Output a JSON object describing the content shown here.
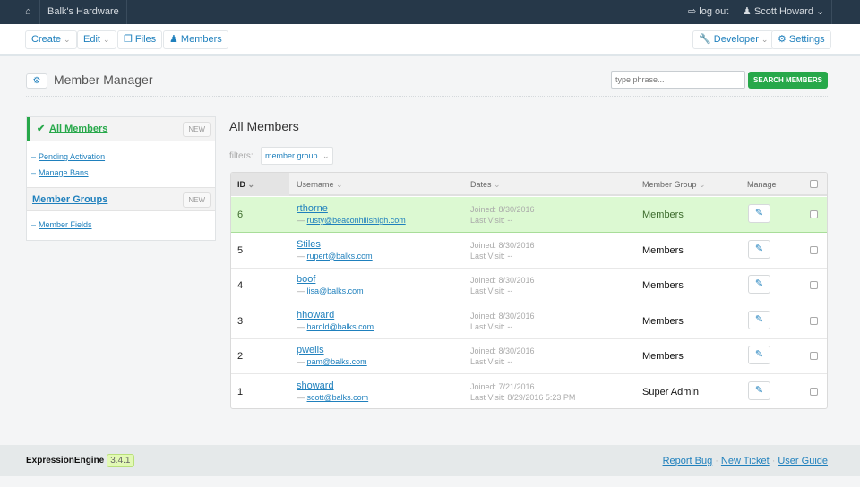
{
  "topbar": {
    "site_name": "Balk's Hardware",
    "logout": "log out",
    "user": "Scott Howard",
    "icons": {
      "home": "home-icon",
      "logout": "sign-out-icon",
      "user": "user-icon"
    }
  },
  "nav": {
    "create": "Create",
    "edit": "Edit",
    "files": "Files",
    "members": "Members",
    "developer": "Developer",
    "settings": "Settings"
  },
  "page": {
    "title": "Member Manager",
    "search_placeholder": "type phrase...",
    "search_button": "SEARCH MEMBERS"
  },
  "sidebar": {
    "all_members": "All Members",
    "new1": "NEW",
    "pending": "Pending Activation",
    "bans": "Manage Bans",
    "groups": "Member Groups",
    "new2": "NEW",
    "fields": "Member Fields"
  },
  "main": {
    "title": "All Members",
    "filters_label": "filters:",
    "filter_member_group": "member group"
  },
  "table": {
    "headers": {
      "id": "ID",
      "username": "Username",
      "dates": "Dates",
      "group": "Member Group",
      "manage": "Manage"
    },
    "rows": [
      {
        "id": "6",
        "username": "rthorne",
        "email": "rusty@beaconhillshigh.com",
        "joined": "Joined: 8/30/2016",
        "last": "Last Visit: --",
        "group": "Members",
        "selected": true
      },
      {
        "id": "5",
        "username": "Stiles",
        "email": "rupert@balks.com",
        "joined": "Joined: 8/30/2016",
        "last": "Last Visit: --",
        "group": "Members"
      },
      {
        "id": "4",
        "username": "boof",
        "email": "lisa@balks.com",
        "joined": "Joined: 8/30/2016",
        "last": "Last Visit: --",
        "group": "Members"
      },
      {
        "id": "3",
        "username": "hhoward",
        "email": "harold@balks.com",
        "joined": "Joined: 8/30/2016",
        "last": "Last Visit: --",
        "group": "Members"
      },
      {
        "id": "2",
        "username": "pwells",
        "email": "pam@balks.com",
        "joined": "Joined: 8/30/2016",
        "last": "Last Visit: --",
        "group": "Members"
      },
      {
        "id": "1",
        "username": "showard",
        "email": "scott@balks.com",
        "joined": "Joined: 7/21/2016",
        "last": "Last Visit: 8/29/2016 5:23 PM",
        "group": "Super Admin"
      }
    ]
  },
  "footer": {
    "brand": "ExpressionEngine",
    "version": "3.4.1",
    "report_bug": "Report Bug",
    "new_ticket": "New Ticket",
    "user_guide": "User Guide"
  },
  "colors": {
    "topbar": "#263849",
    "accent": "#1f80bd",
    "success": "#27a84a",
    "selected_row": "#dcf9d2"
  }
}
